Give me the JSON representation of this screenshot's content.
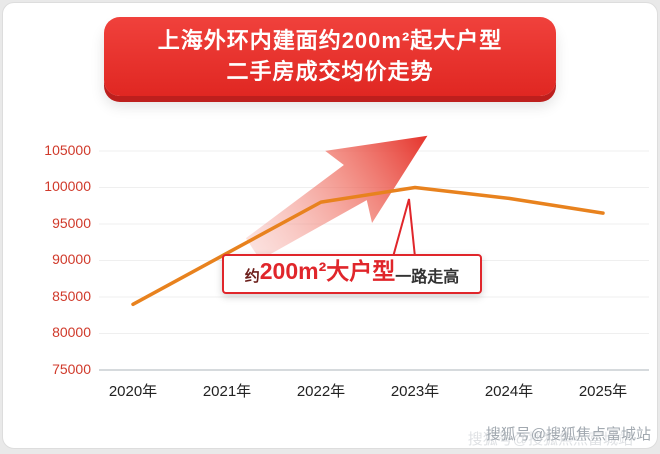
{
  "banner": {
    "title_line1": "上海外环内建面约200m²起大户型",
    "title_line2": "二手房成交均价走势",
    "bg_color": "#e8312c",
    "shadow_color": "#bd1f1d",
    "text_color": "#ffffff"
  },
  "callout": {
    "prefix": "约",
    "highlight": "200m²大户型",
    "suffix": "一路走高",
    "border_color": "#e0262b"
  },
  "watermark": "搜狐号@搜狐焦点富城站",
  "chart_data": {
    "type": "line",
    "title": "上海外环内建面约200m²起大户型二手房成交均价走势",
    "categories": [
      "2020年",
      "2021年",
      "2022年",
      "2023年",
      "2024年",
      "2025年"
    ],
    "values": [
      84000,
      91000,
      98000,
      100000,
      98500,
      96500
    ],
    "series_name": "二手房成交均价",
    "xlabel": "",
    "ylabel": "",
    "ylim": [
      75000,
      105000
    ],
    "y_ticks": [
      105000,
      100000,
      95000,
      90000,
      85000,
      80000,
      75000
    ],
    "y_tick_labels": [
      "105000",
      "100000",
      "95000",
      "90000",
      "85000",
      "80000",
      "75000"
    ],
    "line_color": "#e8821e",
    "axis_label_color": "#d03a2b",
    "grid": true,
    "legend": "none",
    "annotation_arrow": "upward red trend arrow pointing to 2023 peak"
  }
}
